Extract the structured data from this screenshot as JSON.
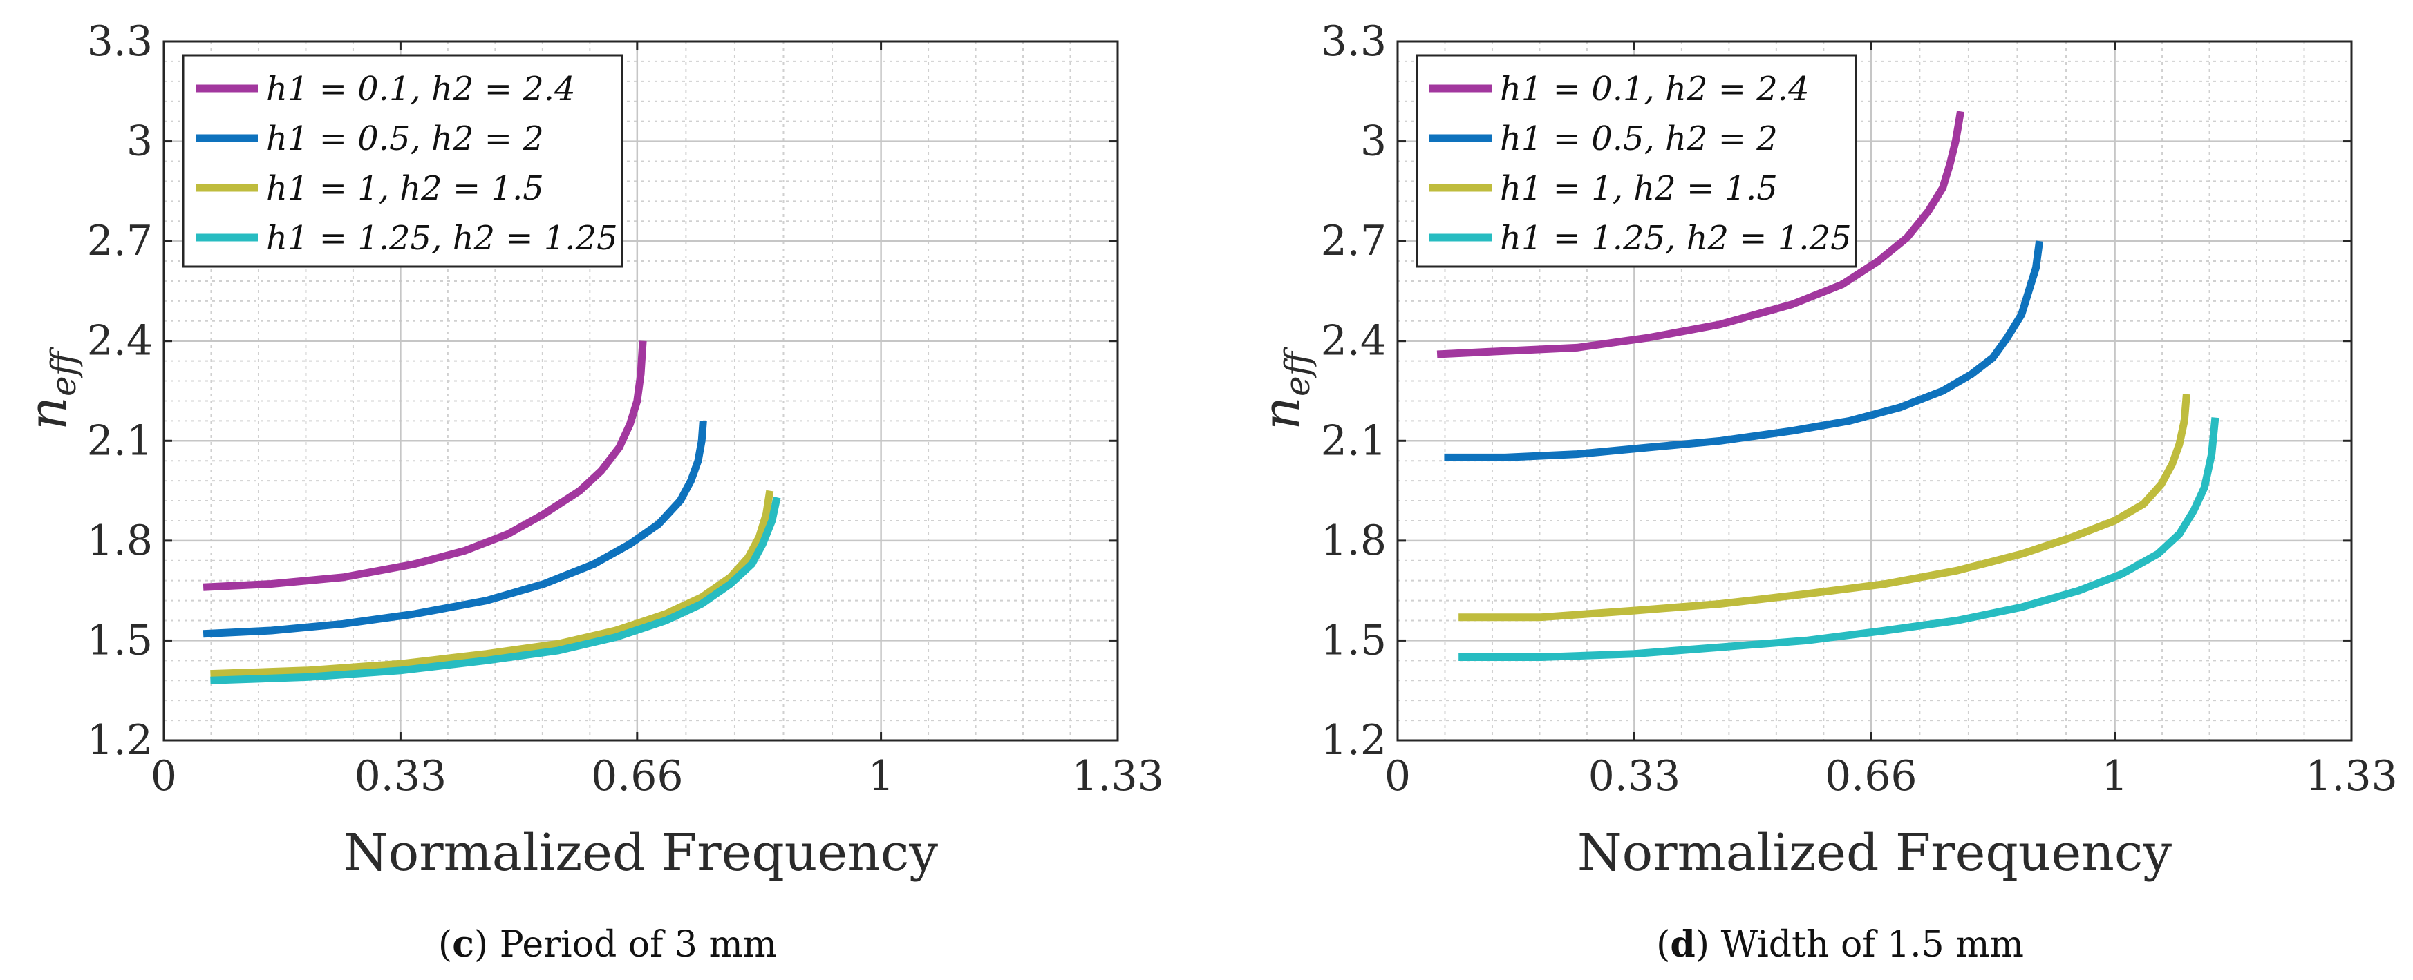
{
  "panels": [
    {
      "caption_letter": "c",
      "caption_text": "Period of 3 mm",
      "legend": {
        "labels": [
          "h1 = 0.1, h2 = 2.4",
          "h1 = 0.5, h2 = 2",
          "h1 = 1, h2 = 1.5",
          "h1 = 1.25, h2 = 1.25"
        ]
      }
    },
    {
      "caption_letter": "d",
      "caption_text": "Width of 1.5 mm",
      "legend": {
        "labels": [
          "h1 = 0.1, h2 = 2.4",
          "h1 = 0.5, h2 = 2",
          "h1 = 1, h2 = 1.5",
          "h1 = 1.25, h2 = 1.25"
        ]
      }
    }
  ],
  "chart_data": [
    {
      "type": "line",
      "xlabel": "Normalized Frequency",
      "ylabel": "n_eff",
      "xlim": [
        0,
        1.33
      ],
      "ylim": [
        1.2,
        3.3
      ],
      "xticks": [
        "0",
        "0.33",
        "0.66",
        "1",
        "1.33"
      ],
      "yticks": [
        "1.2",
        "1.5",
        "1.8",
        "2.1",
        "2.4",
        "2.7",
        "3",
        "3.3"
      ],
      "grid": true,
      "minor_grid": true,
      "legend_position": "top-left",
      "series": [
        {
          "name": "h1 = 0.1, h2 = 2.4",
          "color": "#a2379e",
          "x": [
            0.055,
            0.15,
            0.25,
            0.35,
            0.42,
            0.48,
            0.53,
            0.58,
            0.61,
            0.635,
            0.65,
            0.66,
            0.665,
            0.668
          ],
          "y": [
            1.66,
            1.67,
            1.69,
            1.73,
            1.77,
            1.82,
            1.88,
            1.95,
            2.01,
            2.08,
            2.15,
            2.22,
            2.3,
            2.4
          ]
        },
        {
          "name": "h1 = 0.5, h2 = 2",
          "color": "#0e72bd",
          "x": [
            0.055,
            0.15,
            0.25,
            0.35,
            0.45,
            0.53,
            0.6,
            0.65,
            0.69,
            0.72,
            0.735,
            0.745,
            0.75,
            0.752
          ],
          "y": [
            1.52,
            1.53,
            1.55,
            1.58,
            1.62,
            1.67,
            1.73,
            1.79,
            1.85,
            1.92,
            1.98,
            2.04,
            2.1,
            2.16
          ]
        },
        {
          "name": "h1 = 1, h2 = 1.5",
          "color": "#bfbc3d",
          "x": [
            0.065,
            0.2,
            0.33,
            0.45,
            0.55,
            0.63,
            0.7,
            0.75,
            0.79,
            0.815,
            0.83,
            0.84,
            0.845
          ],
          "y": [
            1.4,
            1.41,
            1.43,
            1.46,
            1.49,
            1.53,
            1.58,
            1.63,
            1.69,
            1.75,
            1.81,
            1.88,
            1.95
          ]
        },
        {
          "name": "h1 = 1.25, h2 = 1.25",
          "color": "#27bcc1",
          "x": [
            0.065,
            0.2,
            0.33,
            0.45,
            0.55,
            0.63,
            0.7,
            0.75,
            0.79,
            0.82,
            0.835,
            0.848,
            0.855
          ],
          "y": [
            1.38,
            1.39,
            1.41,
            1.44,
            1.47,
            1.51,
            1.56,
            1.61,
            1.67,
            1.73,
            1.79,
            1.86,
            1.93
          ]
        }
      ]
    },
    {
      "type": "line",
      "xlabel": "Normalized Frequency",
      "ylabel": "n_eff",
      "xlim": [
        0,
        1.33
      ],
      "ylim": [
        1.2,
        3.3
      ],
      "xticks": [
        "0",
        "0.33",
        "0.66",
        "1",
        "1.33"
      ],
      "yticks": [
        "1.2",
        "1.5",
        "1.8",
        "2.1",
        "2.4",
        "2.7",
        "3",
        "3.3"
      ],
      "grid": true,
      "minor_grid": true,
      "legend_position": "top-left",
      "series": [
        {
          "name": "h1 = 0.1, h2 = 2.4",
          "color": "#a2379e",
          "x": [
            0.055,
            0.15,
            0.25,
            0.35,
            0.45,
            0.55,
            0.62,
            0.67,
            0.71,
            0.74,
            0.76,
            0.77,
            0.778,
            0.782,
            0.785
          ],
          "y": [
            2.36,
            2.37,
            2.38,
            2.41,
            2.45,
            2.51,
            2.57,
            2.64,
            2.71,
            2.79,
            2.86,
            2.93,
            3.0,
            3.05,
            3.09
          ]
        },
        {
          "name": "h1 = 0.5, h2 = 2",
          "color": "#0e72bd",
          "x": [
            0.065,
            0.15,
            0.25,
            0.35,
            0.45,
            0.55,
            0.63,
            0.7,
            0.76,
            0.8,
            0.83,
            0.85,
            0.87,
            0.88,
            0.89,
            0.895
          ],
          "y": [
            2.05,
            2.05,
            2.06,
            2.08,
            2.1,
            2.13,
            2.16,
            2.2,
            2.25,
            2.3,
            2.35,
            2.41,
            2.48,
            2.55,
            2.62,
            2.7
          ]
        },
        {
          "name": "h1 = 1, h2 = 1.5",
          "color": "#bfbc3d",
          "x": [
            0.085,
            0.2,
            0.33,
            0.45,
            0.57,
            0.68,
            0.78,
            0.87,
            0.94,
            1.0,
            1.04,
            1.065,
            1.08,
            1.09,
            1.097,
            1.1
          ],
          "y": [
            1.57,
            1.57,
            1.59,
            1.61,
            1.64,
            1.67,
            1.71,
            1.76,
            1.81,
            1.86,
            1.91,
            1.97,
            2.03,
            2.09,
            2.16,
            2.24
          ]
        },
        {
          "name": "h1 = 1.25, h2 = 1.25",
          "color": "#27bcc1",
          "x": [
            0.085,
            0.2,
            0.33,
            0.45,
            0.57,
            0.68,
            0.78,
            0.87,
            0.95,
            1.01,
            1.06,
            1.09,
            1.11,
            1.125,
            1.135,
            1.14
          ],
          "y": [
            1.45,
            1.45,
            1.46,
            1.48,
            1.5,
            1.53,
            1.56,
            1.6,
            1.65,
            1.7,
            1.76,
            1.82,
            1.89,
            1.96,
            2.06,
            2.17
          ]
        }
      ]
    }
  ]
}
